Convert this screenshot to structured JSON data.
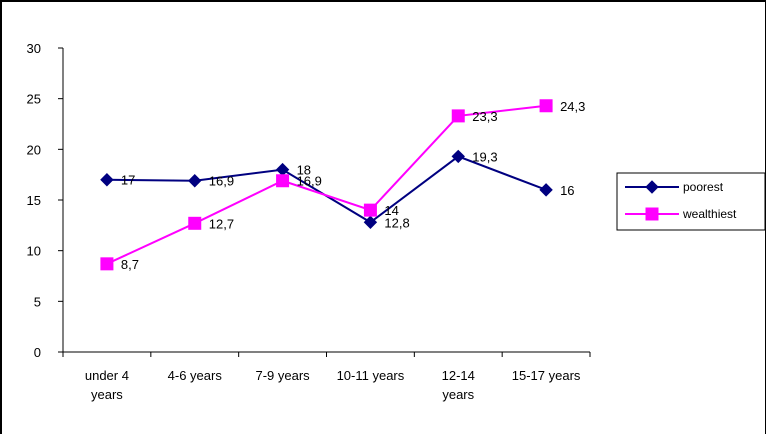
{
  "chart_data": {
    "type": "line",
    "categories": [
      [
        "under 4",
        "years"
      ],
      [
        "4-6 years"
      ],
      [
        "7-9 years"
      ],
      [
        "10-11 years"
      ],
      [
        "12-14",
        "years"
      ],
      [
        "15-17 years"
      ]
    ],
    "ylim": [
      0,
      30
    ],
    "yticks": [
      0,
      5,
      10,
      15,
      20,
      25,
      30
    ],
    "grid": false,
    "legend_position": "right",
    "series": [
      {
        "name": "poorest",
        "values": [
          17,
          16.9,
          18,
          12.8,
          19.3,
          16
        ],
        "labels": [
          "17",
          "16,9",
          "18",
          "12,8",
          "19,3",
          "16"
        ],
        "color": "#000080",
        "marker": "diamond"
      },
      {
        "name": "wealthiest",
        "values": [
          8.7,
          12.7,
          16.9,
          14,
          23.3,
          24.3
        ],
        "labels": [
          "8,7",
          "12,7",
          "16,9",
          "14",
          "23,3",
          "24,3"
        ],
        "color": "#ff00ff",
        "marker": "square"
      }
    ]
  }
}
